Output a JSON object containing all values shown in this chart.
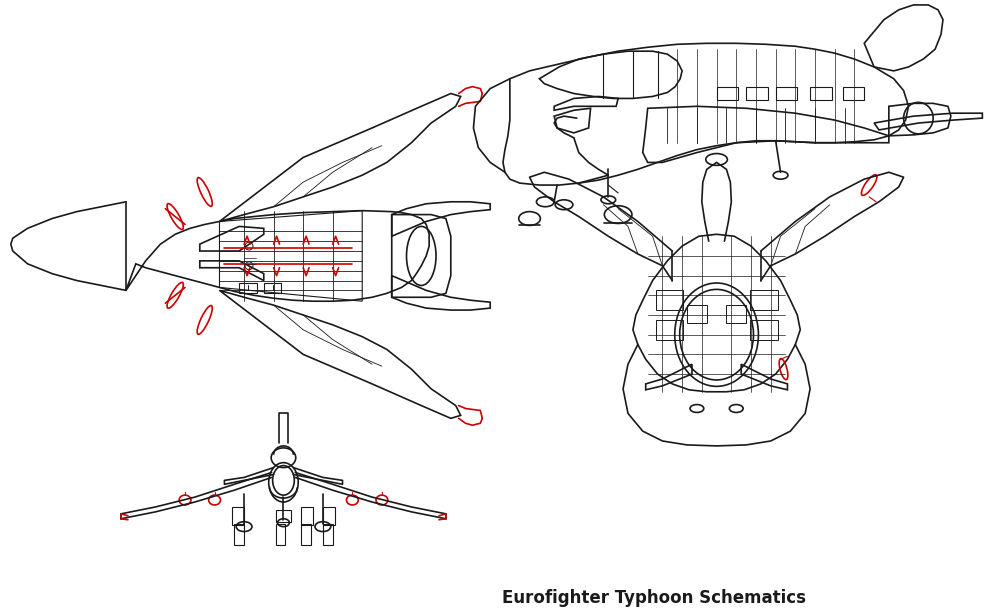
{
  "title": "Eurofighter Typhoon Schematics",
  "background_color": "#ffffff",
  "line_color": "#1a1a1a",
  "red_color": "#cc0000",
  "figsize": [
    10.03,
    6.09
  ],
  "dpi": 100
}
